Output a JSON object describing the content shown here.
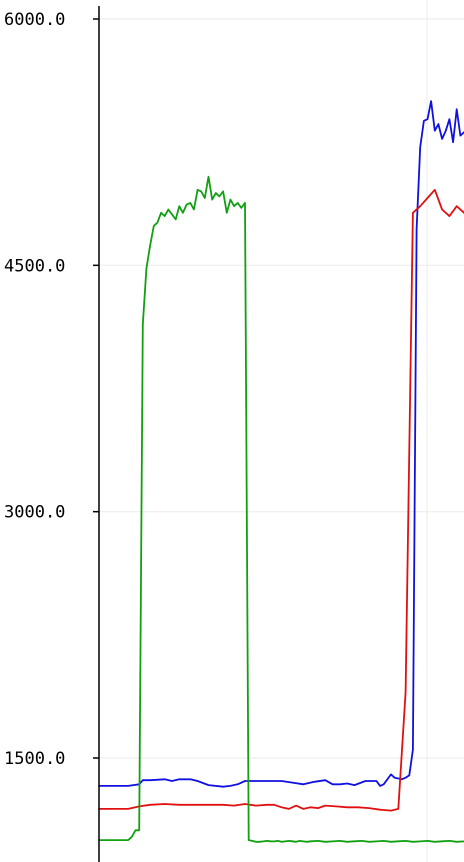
{
  "chart_data": {
    "type": "line",
    "title": "",
    "xlabel": "",
    "ylabel": "",
    "ylim": [
      1000,
      6080
    ],
    "xlim": [
      0,
      100
    ],
    "yticks": [
      {
        "value": 1500,
        "label": "1500.0"
      },
      {
        "value": 3000,
        "label": "3000.0"
      },
      {
        "value": 4500,
        "label": "4500.0"
      },
      {
        "value": 6000,
        "label": "6000.0"
      }
    ],
    "x_gridlines": [
      100
    ],
    "grid": true,
    "series": [
      {
        "color": "#1010e0",
        "x": [
          0,
          3,
          8,
          11,
          12,
          14,
          18,
          20,
          22,
          25,
          27,
          30,
          34,
          36,
          38,
          40,
          43,
          46,
          50,
          53,
          56,
          59,
          62,
          64,
          66,
          68,
          70,
          73,
          76,
          77,
          78,
          80,
          81,
          82,
          83,
          84,
          85,
          86,
          87,
          88,
          89,
          90,
          91,
          92,
          93,
          94,
          95,
          96,
          97,
          98,
          99,
          100
        ],
        "y": [
          1330,
          1330,
          1330,
          1340,
          1365,
          1365,
          1370,
          1360,
          1370,
          1370,
          1360,
          1335,
          1325,
          1330,
          1340,
          1360,
          1360,
          1360,
          1360,
          1350,
          1340,
          1355,
          1365,
          1340,
          1340,
          1345,
          1335,
          1360,
          1360,
          1330,
          1340,
          1400,
          1380,
          1375,
          1370,
          1380,
          1395,
          1550,
          4720,
          5220,
          5380,
          5390,
          5500,
          5320,
          5360,
          5270,
          5320,
          5390,
          5250,
          5450,
          5290,
          5310
        ]
      },
      {
        "color": "#e01010",
        "x": [
          0,
          3,
          8,
          11,
          14,
          18,
          22,
          25,
          27,
          31,
          34,
          37,
          40,
          43,
          46,
          48,
          50,
          52,
          54,
          56,
          58,
          60,
          62,
          65,
          68,
          71,
          74,
          77,
          80,
          82,
          84,
          86,
          88,
          90,
          92,
          94,
          96,
          98,
          100
        ],
        "y": [
          1190,
          1190,
          1190,
          1205,
          1215,
          1220,
          1215,
          1215,
          1215,
          1215,
          1215,
          1210,
          1220,
          1210,
          1215,
          1215,
          1200,
          1190,
          1210,
          1190,
          1200,
          1195,
          1210,
          1205,
          1200,
          1200,
          1195,
          1185,
          1180,
          1190,
          1900,
          4820,
          4860,
          4910,
          4960,
          4840,
          4800,
          4860,
          4820
        ]
      },
      {
        "color": "#10a010",
        "x": [
          0,
          3,
          5,
          7,
          8,
          9,
          10,
          11,
          12,
          13,
          14,
          15,
          16,
          17,
          18,
          19,
          20,
          21,
          22,
          23,
          24,
          25,
          26,
          27,
          28,
          29,
          30,
          31,
          32,
          33,
          34,
          35,
          36,
          37,
          38,
          39,
          40,
          41,
          42,
          43,
          44,
          45,
          46,
          47,
          48,
          49,
          50,
          51,
          52,
          53,
          54,
          55,
          56,
          57,
          58,
          60,
          62,
          64,
          66,
          68,
          70,
          72,
          74,
          76,
          78,
          80,
          82,
          84,
          86,
          88,
          90,
          92,
          94,
          96,
          98,
          100
        ],
        "y": [
          1000,
          1000,
          1000,
          1000,
          1000,
          1020,
          1060,
          1060,
          4140,
          4480,
          4620,
          4740,
          4760,
          4820,
          4800,
          4840,
          4810,
          4780,
          4860,
          4820,
          4870,
          4880,
          4840,
          4960,
          4950,
          4910,
          5040,
          4900,
          4940,
          4920,
          4950,
          4820,
          4900,
          4860,
          4880,
          4850,
          4880,
          1000,
          995,
          990,
          990,
          992,
          995,
          993,
          992,
          995,
          990,
          992,
          995,
          993,
          990,
          995,
          992,
          990,
          993,
          995,
          990,
          992,
          995,
          990,
          993,
          995,
          990,
          992,
          995,
          990,
          993,
          995,
          990,
          992,
          995,
          990,
          993,
          995,
          990,
          992
        ]
      }
    ]
  }
}
